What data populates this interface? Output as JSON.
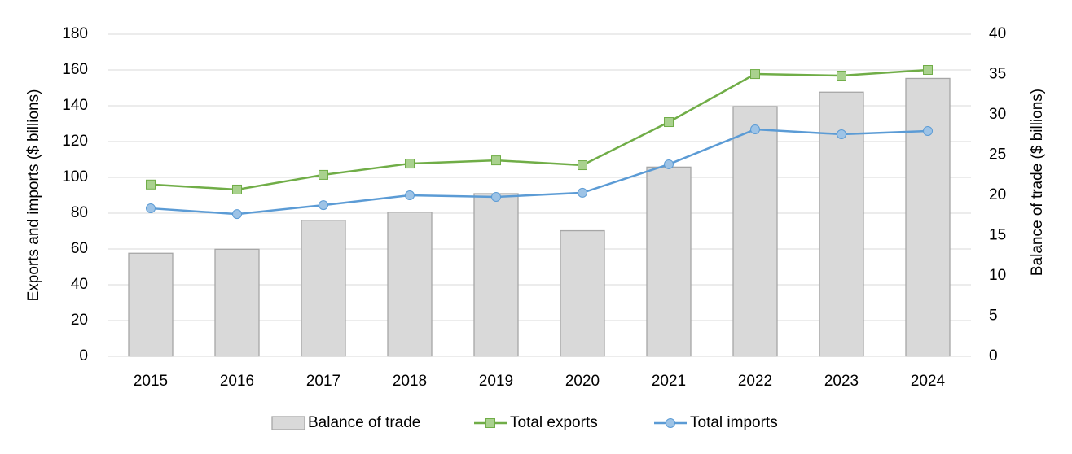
{
  "chart_data": {
    "type": "combo",
    "categories": [
      "2015",
      "2016",
      "2017",
      "2018",
      "2019",
      "2020",
      "2021",
      "2022",
      "2023",
      "2024"
    ],
    "y_label": "Exports and imports ($ billions)",
    "y2_label": "Balance of trade ($ billions)",
    "ylim": [
      0,
      180
    ],
    "yticks": [
      0,
      20,
      40,
      60,
      80,
      100,
      120,
      140,
      160,
      180
    ],
    "y2lim": [
      0,
      40
    ],
    "y2ticks": [
      0,
      5,
      10,
      15,
      20,
      25,
      30,
      35,
      40
    ],
    "grid": true,
    "legend": "bottom",
    "series": [
      {
        "name": "Balance of trade",
        "type": "bar",
        "axis": "y2",
        "color": "#d9d9d9",
        "values": [
          12.8,
          13.3,
          16.9,
          17.9,
          20.2,
          15.6,
          23.5,
          31.0,
          32.8,
          34.5
        ]
      },
      {
        "name": "Total exports",
        "type": "line",
        "marker": "square",
        "color": "#70ad47",
        "values": [
          96,
          93.2,
          101.4,
          107.7,
          109.5,
          106.8,
          130.9,
          157.7,
          156.8,
          160
        ]
      },
      {
        "name": "Total imports",
        "type": "line",
        "marker": "circle",
        "color": "#5b9bd5",
        "values": [
          82.7,
          79.5,
          84.5,
          90,
          89.1,
          91.4,
          107.3,
          126.8,
          124.1,
          125.9
        ]
      }
    ]
  }
}
